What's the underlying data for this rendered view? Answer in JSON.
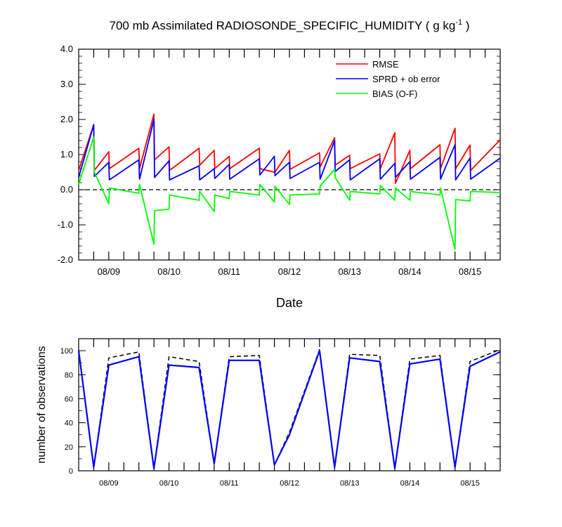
{
  "chart_data": [
    {
      "type": "line",
      "title": "700 mb Assimilated RADIOSONDE_SPECIFIC_HUMIDITY ( g kg",
      "title_superscript": "-1",
      "title_suffix": " )",
      "xlabel": "Date",
      "ylabel": "",
      "xlim": [
        0,
        7.0
      ],
      "ylim": [
        -2.0,
        4.0
      ],
      "yticks": [
        4.0,
        3.0,
        2.0,
        1.0,
        0.0,
        -1.0,
        -2.0
      ],
      "ytick_labels": [
        "4.0",
        "3.0",
        "2.0",
        "1.0",
        "0.0",
        "-1.0",
        "-2.0"
      ],
      "xtick_labels": [
        "08/09",
        "08/10",
        "08/11",
        "08/12",
        "08/13",
        "08/14",
        "08/15"
      ],
      "zero_line": true,
      "grid": false,
      "legend_position": "top-right",
      "colors": {
        "rmse": "#ff0000",
        "sprd": "#0000ff",
        "bias": "#00ff00",
        "zero": "#000000"
      },
      "series": [
        {
          "name": "RMSE",
          "color": "#ff0000",
          "points": [
            [
              0,
              0.55
            ],
            [
              0.25,
              1.85
            ],
            [
              0.26,
              0.55
            ],
            [
              0.5,
              1.08
            ],
            [
              0.51,
              0.6
            ],
            [
              1.0,
              1.18
            ],
            [
              1.01,
              0.6
            ],
            [
              1.25,
              2.15
            ],
            [
              1.26,
              0.85
            ],
            [
              1.5,
              1.22
            ],
            [
              1.51,
              0.55
            ],
            [
              2.0,
              1.18
            ],
            [
              2.01,
              0.7
            ],
            [
              2.25,
              1.12
            ],
            [
              2.26,
              0.6
            ],
            [
              2.5,
              0.95
            ],
            [
              2.51,
              0.6
            ],
            [
              3.0,
              1.18
            ],
            [
              3.01,
              0.6
            ],
            [
              3.25,
              0.5
            ],
            [
              3.26,
              0.5
            ],
            [
              3.5,
              1.12
            ],
            [
              3.51,
              0.58
            ],
            [
              4.0,
              1.05
            ],
            [
              4.01,
              0.65
            ],
            [
              4.25,
              1.48
            ],
            [
              4.26,
              0.7
            ],
            [
              4.5,
              0.98
            ],
            [
              4.51,
              0.6
            ],
            [
              5.0,
              1.02
            ],
            [
              5.01,
              0.6
            ],
            [
              5.25,
              1.62
            ],
            [
              5.26,
              0.18
            ],
            [
              5.5,
              1.12
            ],
            [
              5.51,
              0.6
            ],
            [
              6.0,
              1.28
            ],
            [
              6.01,
              0.6
            ],
            [
              6.25,
              1.75
            ],
            [
              6.26,
              0.6
            ],
            [
              6.5,
              1.27
            ],
            [
              6.51,
              0.55
            ],
            [
              7.0,
              1.42
            ]
          ]
        },
        {
          "name": "SPRD + ob error",
          "color": "#0000ff",
          "points": [
            [
              0,
              0.35
            ],
            [
              0.25,
              1.85
            ],
            [
              0.26,
              0.38
            ],
            [
              0.5,
              0.78
            ],
            [
              0.51,
              0.28
            ],
            [
              1.0,
              0.85
            ],
            [
              1.01,
              0.3
            ],
            [
              1.25,
              2.0
            ],
            [
              1.26,
              0.35
            ],
            [
              1.5,
              0.82
            ],
            [
              1.51,
              0.28
            ],
            [
              2.0,
              0.68
            ],
            [
              2.01,
              0.28
            ],
            [
              2.25,
              0.6
            ],
            [
              2.26,
              0.32
            ],
            [
              2.5,
              0.72
            ],
            [
              2.51,
              0.3
            ],
            [
              3.0,
              0.88
            ],
            [
              3.01,
              0.42
            ],
            [
              3.25,
              0.95
            ],
            [
              3.26,
              0.4
            ],
            [
              3.5,
              0.78
            ],
            [
              3.51,
              0.32
            ],
            [
              4.0,
              0.78
            ],
            [
              4.01,
              0.3
            ],
            [
              4.25,
              1.4
            ],
            [
              4.26,
              0.52
            ],
            [
              4.5,
              0.85
            ],
            [
              4.51,
              0.28
            ],
            [
              5.0,
              0.88
            ],
            [
              5.01,
              0.3
            ],
            [
              5.25,
              0.75
            ],
            [
              5.26,
              0.35
            ],
            [
              5.5,
              0.8
            ],
            [
              5.51,
              0.3
            ],
            [
              6.0,
              0.92
            ],
            [
              6.01,
              0.3
            ],
            [
              6.25,
              1.28
            ],
            [
              6.26,
              0.28
            ],
            [
              6.5,
              0.9
            ],
            [
              6.51,
              0.3
            ],
            [
              7.0,
              0.9
            ]
          ]
        },
        {
          "name": "BIAS (O-F)",
          "color": "#00ff00",
          "points": [
            [
              0,
              0.15
            ],
            [
              0.25,
              1.5
            ],
            [
              0.26,
              0.5
            ],
            [
              0.5,
              -0.4
            ],
            [
              0.51,
              0.05
            ],
            [
              1.0,
              -0.1
            ],
            [
              1.01,
              0.15
            ],
            [
              1.25,
              -1.55
            ],
            [
              1.26,
              -0.6
            ],
            [
              1.5,
              -0.55
            ],
            [
              1.51,
              -0.15
            ],
            [
              2.0,
              -0.3
            ],
            [
              2.01,
              -0.05
            ],
            [
              2.25,
              -0.62
            ],
            [
              2.26,
              -0.15
            ],
            [
              2.5,
              -0.25
            ],
            [
              2.51,
              -0.05
            ],
            [
              3.0,
              -0.15
            ],
            [
              3.01,
              0.15
            ],
            [
              3.25,
              -0.35
            ],
            [
              3.26,
              0.1
            ],
            [
              3.5,
              -0.42
            ],
            [
              3.51,
              -0.15
            ],
            [
              4.0,
              -0.12
            ],
            [
              4.01,
              0.1
            ],
            [
              4.25,
              0.58
            ],
            [
              4.26,
              0.35
            ],
            [
              4.5,
              -0.3
            ],
            [
              4.51,
              -0.05
            ],
            [
              5.0,
              -0.12
            ],
            [
              5.01,
              0.12
            ],
            [
              5.25,
              -0.3
            ],
            [
              5.26,
              0.05
            ],
            [
              5.5,
              -0.3
            ],
            [
              5.51,
              -0.05
            ],
            [
              6.0,
              -0.15
            ],
            [
              6.01,
              0.05
            ],
            [
              6.25,
              -1.7
            ],
            [
              6.26,
              -0.28
            ],
            [
              6.5,
              -0.32
            ],
            [
              6.51,
              -0.05
            ],
            [
              7.0,
              -0.08
            ]
          ]
        }
      ]
    },
    {
      "type": "line",
      "title": "",
      "xlabel": "",
      "ylabel": "number of observations",
      "xlim": [
        0,
        7.0
      ],
      "ylim": [
        0,
        110
      ],
      "yticks": [
        0,
        20,
        40,
        60,
        80,
        100
      ],
      "ytick_labels": [
        "0",
        "20",
        "40",
        "60",
        "80",
        "100"
      ],
      "xtick_labels": [
        "08/09",
        "08/10",
        "08/11",
        "08/12",
        "08/13",
        "08/14",
        "08/15"
      ],
      "grid": false,
      "series": [
        {
          "id": "used",
          "color": "#0000ff",
          "style": "solid",
          "points": [
            [
              0,
              100
            ],
            [
              0.25,
              3
            ],
            [
              0.5,
              88
            ],
            [
              1.0,
              95
            ],
            [
              1.25,
              2
            ],
            [
              1.5,
              88
            ],
            [
              2.0,
              86
            ],
            [
              2.25,
              6
            ],
            [
              2.5,
              92
            ],
            [
              3.0,
              92
            ],
            [
              3.25,
              5
            ],
            [
              3.5,
              30
            ],
            [
              4.0,
              100
            ],
            [
              4.25,
              3
            ],
            [
              4.5,
              94
            ],
            [
              5.0,
              91
            ],
            [
              5.25,
              2
            ],
            [
              5.5,
              89
            ],
            [
              6.0,
              93
            ],
            [
              6.25,
              3
            ],
            [
              6.5,
              87
            ],
            [
              7.0,
              99
            ]
          ]
        },
        {
          "id": "possible",
          "color": "#000000",
          "style": "dashed",
          "points": [
            [
              0,
              100
            ],
            [
              0.25,
              3
            ],
            [
              0.5,
              94
            ],
            [
              1.0,
              99
            ],
            [
              1.25,
              2
            ],
            [
              1.5,
              95
            ],
            [
              2.0,
              91
            ],
            [
              2.25,
              6
            ],
            [
              2.5,
              95
            ],
            [
              3.0,
              96
            ],
            [
              3.25,
              5
            ],
            [
              3.5,
              32
            ],
            [
              4.0,
              101
            ],
            [
              4.25,
              3
            ],
            [
              4.5,
              97
            ],
            [
              5.0,
              96
            ],
            [
              5.25,
              2
            ],
            [
              5.5,
              93
            ],
            [
              6.0,
              96
            ],
            [
              6.25,
              3
            ],
            [
              6.5,
              91
            ],
            [
              7.0,
              101
            ]
          ]
        }
      ]
    }
  ]
}
